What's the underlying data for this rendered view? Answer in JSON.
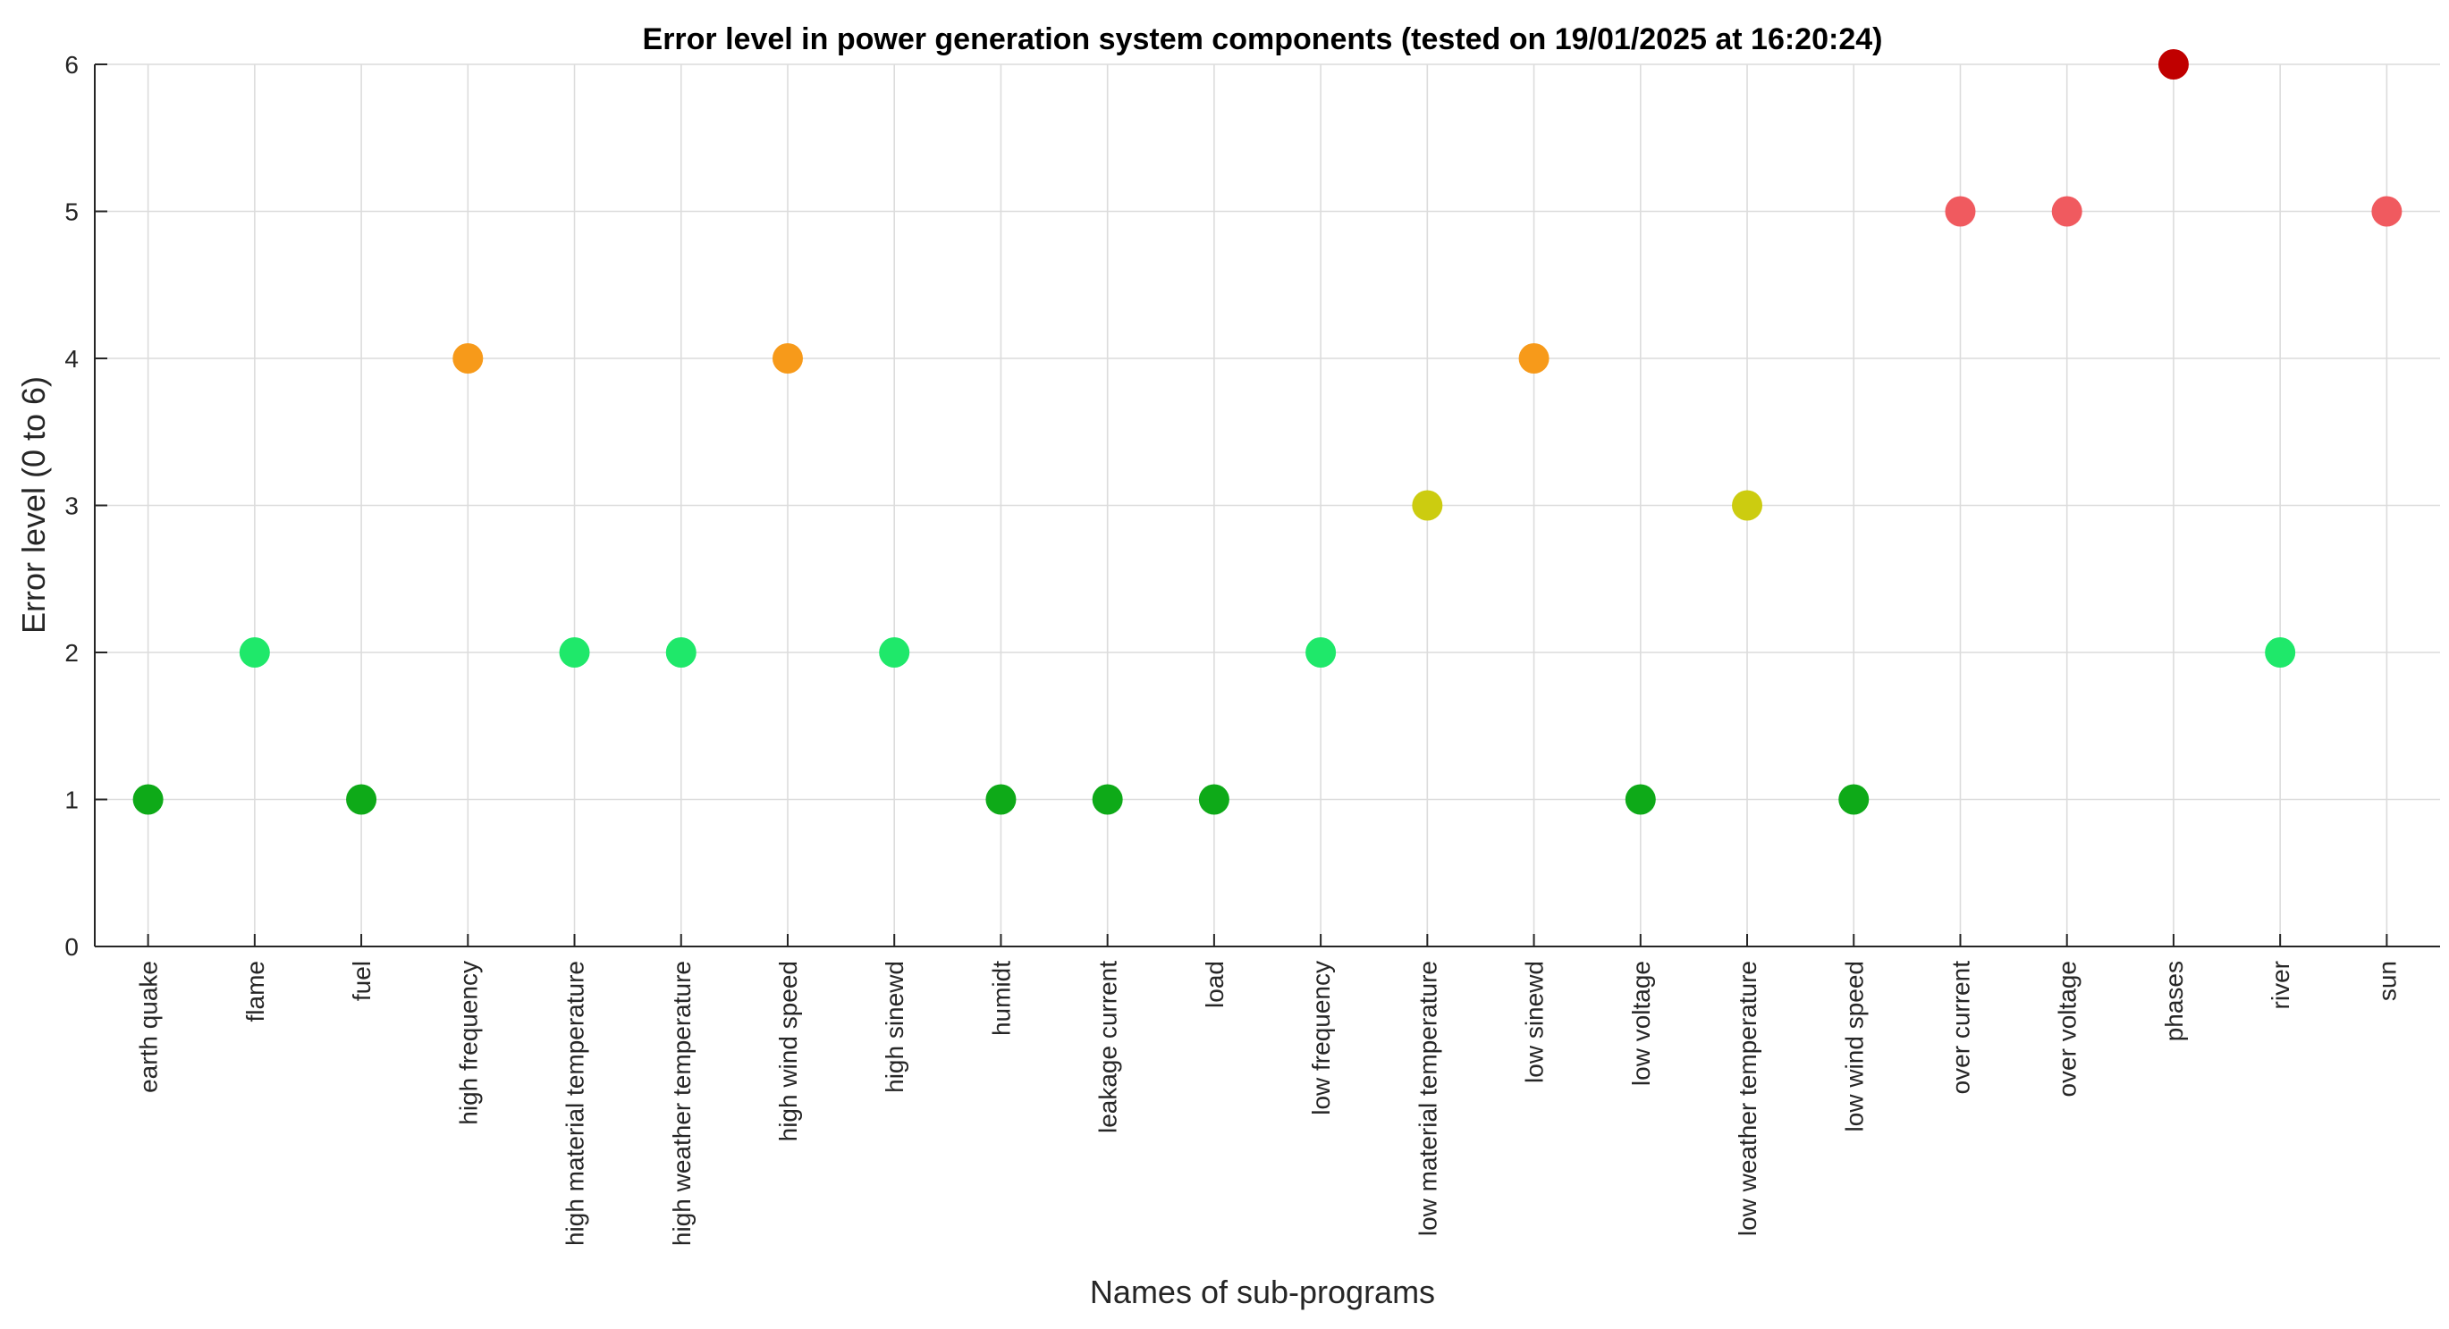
{
  "chart_data": {
    "type": "scatter",
    "title": "Error level in power generation system components (tested on 19/01/2025 at 16:20:24)",
    "xlabel": "Names of sub-programs",
    "ylabel": "Error level (0 to 6)",
    "ylim": [
      0,
      6
    ],
    "yticks": [
      "0",
      "1",
      "2",
      "3",
      "4",
      "5",
      "6"
    ],
    "grid": true,
    "categories": [
      "earth quake",
      "flame",
      "fuel",
      "high frequency",
      "high material temperature",
      "high weather temperature",
      "high wind speed",
      "high sinewd",
      "humidt",
      "leakage current",
      "load",
      "low frequency",
      "low material temperature",
      "low sinewd",
      "low voltage",
      "low weather temperature",
      "low wind speed",
      "over current",
      "over voltage",
      "phases",
      "river",
      "sun"
    ],
    "values": [
      1,
      2,
      1,
      4,
      2,
      2,
      4,
      2,
      1,
      1,
      1,
      2,
      3,
      4,
      1,
      3,
      1,
      5,
      5,
      6,
      2,
      5
    ],
    "level_colors": {
      "1": "#0eaa18",
      "2": "#1fe86a",
      "3": "#cccc10",
      "4": "#f79a1a",
      "5": "#f05a5f",
      "6": "#c00000"
    }
  }
}
